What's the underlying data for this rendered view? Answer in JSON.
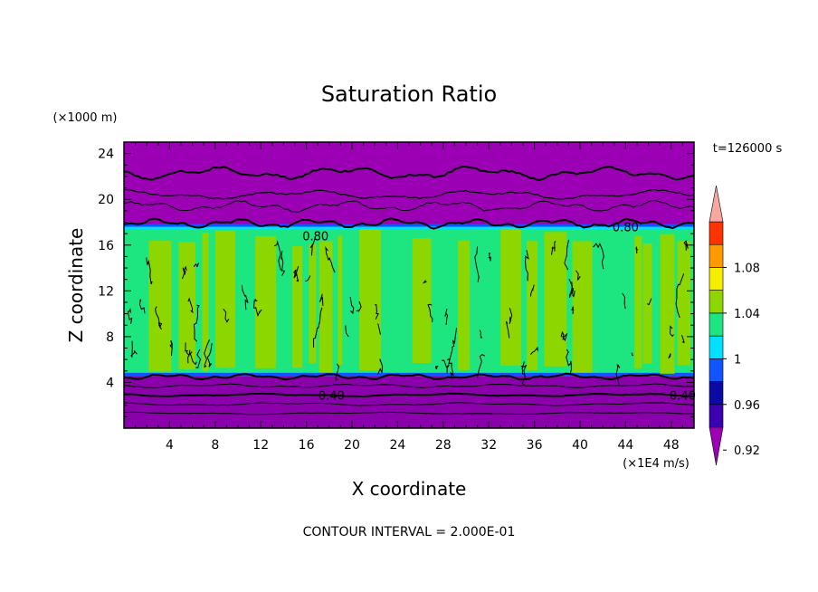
{
  "chart_data": {
    "type": "contour",
    "title": "Saturation Ratio",
    "xlabel": "X coordinate",
    "ylabel": "Z coordinate",
    "x_units": "(×1E4 m/s)",
    "y_units": "(×1000 m)",
    "time_label": "t=126000 s",
    "footer": "CONTOUR INTERVAL = 2.000E-01",
    "xlim": [
      0,
      50
    ],
    "ylim": [
      0,
      25
    ],
    "x_ticks": [
      4,
      8,
      12,
      16,
      20,
      24,
      28,
      32,
      36,
      40,
      44,
      48
    ],
    "y_ticks": [
      4,
      8,
      12,
      16,
      20,
      24
    ],
    "contour_labels": [
      {
        "text": "0.80",
        "x": 16.8,
        "y": 16.8
      },
      {
        "text": "0.80",
        "x": 44.0,
        "y": 17.6
      },
      {
        "text": "0.40",
        "x": 18.2,
        "y": 2.9
      },
      {
        "text": "0.40",
        "x": 49.0,
        "y": 2.9
      }
    ],
    "regions": [
      {
        "name": "upper-dry-layer",
        "zmin": 17.6,
        "zmax": 25,
        "level": "<0.90"
      },
      {
        "name": "cloud-layer",
        "zmin": 4.6,
        "zmax": 17.6,
        "level": "0.98–1.02"
      },
      {
        "name": "lower-dry-layer",
        "zmin": 0,
        "zmax": 4.6,
        "level": "<0.90"
      }
    ],
    "colorbar": {
      "labels": [
        "1.08",
        "1.04",
        "1",
        "0.96",
        "0.92"
      ],
      "colors": [
        "#9b00b5",
        "#3b00b0",
        "#0a0aa5",
        "#1155ff",
        "#00e0ff",
        "#1de680",
        "#8ed600",
        "#f5ee00",
        "#ff9900",
        "#ff3300",
        "#f5a7a0"
      ]
    }
  }
}
